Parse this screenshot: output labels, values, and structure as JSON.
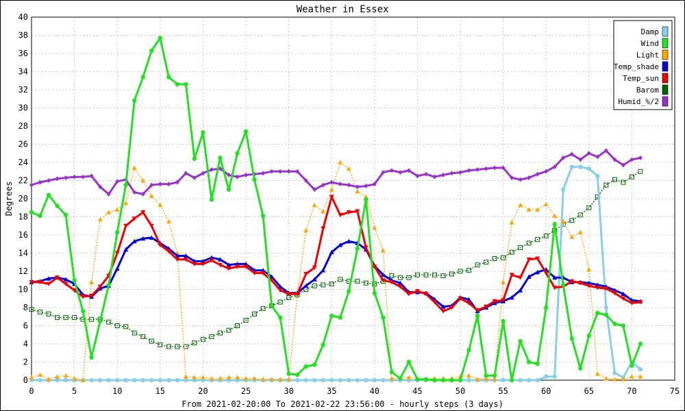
{
  "chart_data": {
    "type": "line",
    "title": "Weather in Essex",
    "xlabel": "From 2021-02-20:00 To 2021-02-22 23:56:00 - hourly steps (3 days)",
    "ylabel": "Degrees",
    "xlim": [
      0,
      75
    ],
    "ylim": [
      0,
      40
    ],
    "xticks": [
      0,
      5,
      10,
      15,
      20,
      25,
      30,
      35,
      40,
      45,
      50,
      55,
      60,
      65,
      70,
      75
    ],
    "yticks": [
      0,
      2,
      4,
      6,
      8,
      10,
      12,
      14,
      16,
      18,
      20,
      22,
      24,
      26,
      28,
      30,
      32,
      34,
      36,
      38,
      40
    ],
    "grid": true,
    "legend_position": "top-right",
    "series": [
      {
        "name": "Damp",
        "color": "#87ceeb",
        "marker": "circle",
        "style": "solid",
        "values": [
          0,
          0,
          0,
          0,
          0,
          0,
          0,
          0,
          0,
          0,
          0,
          0,
          0,
          0,
          0,
          0,
          0,
          0,
          0,
          0,
          0,
          0,
          0,
          0,
          0,
          0,
          0,
          0,
          0,
          0,
          0,
          0,
          0,
          0,
          0,
          0,
          0,
          0,
          0,
          0,
          0,
          0,
          0,
          0,
          0,
          0,
          0,
          0,
          0,
          0,
          0,
          0,
          0,
          0,
          0,
          0,
          0,
          0,
          0,
          0,
          0.4,
          0.4,
          21,
          23.5,
          23.5,
          23.3,
          22.5,
          8,
          0.8,
          0.3,
          2,
          1.2
        ]
      },
      {
        "name": "Wind",
        "color": "#22e022",
        "marker": "circle",
        "style": "solid",
        "values": [
          18.5,
          18.1,
          20.4,
          19.2,
          18.2,
          11,
          7.6,
          2.5,
          6.5,
          10.5,
          16.3,
          21.5,
          30.8,
          33.4,
          36.3,
          37.7,
          33.4,
          32.6,
          32.6,
          24.4,
          27.3,
          19.9,
          24.5,
          21,
          25,
          27.4,
          22.1,
          18.1,
          8.2,
          6.9,
          0.7,
          0.6,
          1.5,
          1.7,
          3.9,
          7.1,
          6.9,
          9.8,
          14.5,
          19.9,
          9.6,
          6.9,
          0.9,
          0.2,
          2,
          0.1,
          0.1,
          0,
          0,
          0,
          0,
          3.3,
          7.1,
          0.5,
          0.5,
          6.5,
          0,
          4.3,
          2,
          1.8,
          8,
          17.2,
          10.5,
          4.6,
          1.3,
          4.9,
          7.4,
          7.2,
          6.2,
          6,
          1.6,
          4
        ]
      },
      {
        "name": "Light",
        "color": "#ffa500",
        "marker": "triangle",
        "style": "dotted",
        "values": [
          0.3,
          0.6,
          0.1,
          0.4,
          0.5,
          0.2,
          0,
          10.8,
          17.7,
          18.5,
          18.8,
          19.5,
          23.4,
          22,
          20.3,
          19.3,
          17.5,
          14,
          0.4,
          0.3,
          0.3,
          0.2,
          0.2,
          0.3,
          0.3,
          0.2,
          0.2,
          0.1,
          0.1,
          0.1,
          0.1,
          9.5,
          16.5,
          19.3,
          18.6,
          21,
          24,
          23.3,
          20.8,
          20.2,
          16.8,
          14.3,
          0.2,
          0.2,
          0.3,
          0.2,
          0.1,
          0.2,
          0.2,
          0.2,
          0.4,
          0.5,
          0.1,
          0.2,
          0.1,
          10.8,
          17.4,
          19.3,
          18.8,
          18.8,
          19.4,
          18.1,
          17.5,
          15.8,
          16.3,
          12.2,
          0.7,
          0.2,
          0.1,
          0.1,
          0.4,
          0.4
        ]
      },
      {
        "name": "Temp_shade",
        "color": "#0000dd",
        "marker": "triangle",
        "style": "solid",
        "values": [
          10.8,
          10.9,
          11.2,
          11.3,
          11.1,
          10.6,
          9.4,
          9.2,
          10.1,
          10.4,
          12.3,
          14.4,
          15.3,
          15.6,
          15.7,
          15.1,
          14.5,
          13.7,
          13.7,
          13.1,
          13.1,
          13.5,
          13.3,
          12.7,
          12.8,
          12.8,
          12.1,
          12.1,
          11.4,
          10.3,
          9.6,
          9.6,
          10.4,
          11.1,
          12.1,
          14.1,
          14.9,
          15.3,
          15.1,
          14.4,
          12.6,
          11.6,
          11,
          10.7,
          9.7,
          9.7,
          9.6,
          8.9,
          8.1,
          8.2,
          9.1,
          8.9,
          7.6,
          8,
          8.5,
          8.7,
          9.1,
          9.9,
          11.4,
          11.9,
          12.2,
          11.3,
          11.3,
          10.8,
          10.8,
          10.7,
          10.5,
          10.3,
          9.9,
          9.5,
          8.8,
          8.7
        ]
      },
      {
        "name": "Temp_sun",
        "color": "#ee0000",
        "marker": "triangle-down",
        "style": "solid",
        "values": [
          10.8,
          10.8,
          10.6,
          11.3,
          10.6,
          9.9,
          9.2,
          9.3,
          10.3,
          11.5,
          14,
          17,
          17.8,
          18.5,
          17,
          14.9,
          14.2,
          13.3,
          13.3,
          12.8,
          12.8,
          13.2,
          12.7,
          12.3,
          12.5,
          12.5,
          11.8,
          11.8,
          11,
          9.9,
          9.5,
          9.5,
          11.7,
          12.4,
          16.7,
          20.2,
          18.2,
          18.5,
          18.6,
          14.6,
          12.5,
          11,
          10.8,
          10.3,
          9.5,
          9.8,
          9.5,
          8.6,
          7.6,
          8,
          9,
          8.5,
          7.7,
          8.1,
          8.7,
          8.8,
          11.6,
          11.3,
          13.3,
          13.4,
          11.8,
          10.2,
          10.3,
          10.9,
          10.7,
          10.4,
          10.2,
          10.1,
          9.6,
          9,
          8.5,
          8.6
        ]
      },
      {
        "name": "Barom",
        "color": "#006400",
        "marker": "square",
        "style": "dotted",
        "values": [
          7.8,
          7.5,
          7.3,
          6.9,
          6.9,
          6.9,
          6.7,
          6.7,
          6.7,
          6.4,
          6,
          5.9,
          5.2,
          4.8,
          4.3,
          3.9,
          3.7,
          3.7,
          3.7,
          4.1,
          4.5,
          4.8,
          5.2,
          5.5,
          6,
          6.6,
          7.3,
          7.9,
          8.2,
          8.6,
          9.1,
          9.4,
          10,
          10.4,
          10.5,
          10.6,
          11.1,
          10.9,
          10.9,
          10.7,
          10.6,
          10.9,
          11.5,
          11.3,
          11.3,
          11.6,
          11.6,
          11.6,
          11.5,
          11.7,
          12,
          12.1,
          12.7,
          13,
          13.4,
          13.5,
          14.1,
          14.6,
          15.1,
          15.5,
          15.9,
          16.5,
          17.2,
          17.6,
          18.2,
          19,
          20.2,
          21.5,
          22.1,
          21.8,
          22.4,
          23
        ]
      },
      {
        "name": "Humid_%/2",
        "color": "#9932cc",
        "marker": "diamond",
        "style": "solid",
        "values": [
          21.5,
          21.8,
          22,
          22.2,
          22.3,
          22.4,
          22.4,
          22.5,
          21.3,
          20.5,
          21.9,
          22.1,
          20.7,
          20.5,
          21.5,
          21.6,
          21.6,
          21.8,
          22.8,
          22.3,
          22.8,
          23.2,
          23.3,
          22.6,
          22.4,
          22.6,
          22.7,
          22.8,
          23,
          23,
          23,
          23,
          22,
          21,
          21.5,
          21.8,
          21.6,
          21.5,
          21.3,
          21.4,
          21.6,
          22.9,
          23.1,
          22.9,
          23.1,
          22.5,
          22.7,
          22.4,
          22.6,
          22.8,
          22.9,
          23.1,
          23.2,
          23.3,
          23.4,
          23.4,
          22.3,
          22.1,
          22.3,
          22.7,
          23,
          23.5,
          24.5,
          24.9,
          24.3,
          25,
          24.6,
          25.3,
          24.3,
          23.7,
          24.3,
          24.5
        ]
      }
    ]
  }
}
